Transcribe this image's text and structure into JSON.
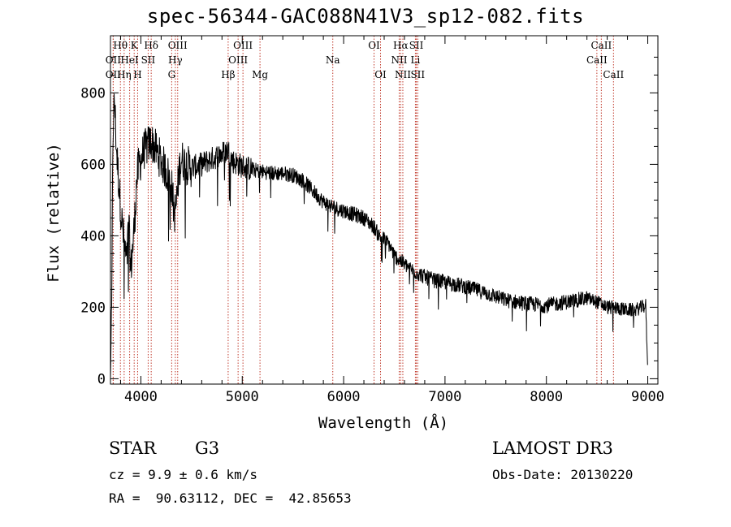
{
  "chart_data": {
    "type": "line",
    "title": "spec-56344-GAC088N41V3_sp12-082.fits",
    "xlabel": "Wavelength (Å)",
    "ylabel": "Flux (relative)",
    "xlim": [
      3700,
      9100
    ],
    "ylim": [
      -15,
      960
    ],
    "x_ticks": [
      4000,
      5000,
      6000,
      7000,
      8000,
      9000
    ],
    "x_tick_labels": [
      "4000",
      "5000",
      "6000",
      "7000",
      "8000",
      "9000"
    ],
    "y_ticks": [
      0,
      200,
      400,
      600,
      800
    ],
    "y_tick_labels": [
      "0",
      "200",
      "400",
      "600",
      "800"
    ],
    "spectrum_anchors": {
      "x": [
        3700,
        3712,
        3725,
        3740,
        3760,
        3780,
        3800,
        3820,
        3840,
        3860,
        3880,
        3900,
        3920,
        3940,
        3960,
        3980,
        4000,
        4030,
        4060,
        4100,
        4150,
        4200,
        4250,
        4300,
        4330,
        4350,
        4380,
        4400,
        4450,
        4500,
        4600,
        4700,
        4800,
        4860,
        4900,
        5000,
        5100,
        5200,
        5300,
        5400,
        5500,
        5600,
        5700,
        5800,
        5900,
        6000,
        6100,
        6200,
        6300,
        6350,
        6400,
        6450,
        6500,
        6563,
        6600,
        6700,
        6800,
        6900,
        7000,
        7200,
        7400,
        7600,
        7800,
        8000,
        8200,
        8400,
        8500,
        8600,
        8700,
        8800,
        8880,
        8980,
        9000
      ],
      "y": [
        0,
        180,
        700,
        780,
        640,
        560,
        480,
        420,
        370,
        320,
        440,
        300,
        370,
        450,
        560,
        600,
        610,
        640,
        650,
        665,
        640,
        610,
        580,
        550,
        460,
        490,
        590,
        615,
        600,
        590,
        600,
        615,
        630,
        640,
        610,
        595,
        585,
        580,
        575,
        575,
        570,
        555,
        525,
        495,
        480,
        470,
        460,
        450,
        425,
        400,
        390,
        375,
        345,
        330,
        320,
        300,
        285,
        275,
        270,
        258,
        240,
        220,
        210,
        205,
        215,
        225,
        215,
        200,
        198,
        192,
        193,
        205,
        20
      ],
      "noise_amplitude_approx": 22
    },
    "spectral_lines": [
      {
        "label": "OII",
        "wavelength": 3727,
        "row": 2
      },
      {
        "label": "Hθ",
        "wavelength": 3798,
        "row": 1
      },
      {
        "label": "OII",
        "wavelength": 3727,
        "row": 3
      },
      {
        "label": "Hη",
        "wavelength": 3835,
        "row": 3
      },
      {
        "label": "HeI",
        "wavelength": 3889,
        "row": 2
      },
      {
        "label": "K",
        "wavelength": 3934,
        "row": 1
      },
      {
        "label": "H",
        "wavelength": 3968,
        "row": 3
      },
      {
        "label": "SII",
        "wavelength": 4072,
        "row": 2
      },
      {
        "label": "Hδ",
        "wavelength": 4102,
        "row": 1
      },
      {
        "label": "OIII",
        "wavelength": 4363,
        "row": 1
      },
      {
        "label": "Hγ",
        "wavelength": 4340,
        "row": 2
      },
      {
        "label": "G",
        "wavelength": 4304,
        "row": 3
      },
      {
        "label": "OIII",
        "wavelength": 5007,
        "row": 1
      },
      {
        "label": "OIII",
        "wavelength": 4959,
        "row": 2
      },
      {
        "label": "Hβ",
        "wavelength": 4861,
        "row": 3
      },
      {
        "label": "Mg",
        "wavelength": 5175,
        "row": 3
      },
      {
        "label": "Na",
        "wavelength": 5893,
        "row": 2
      },
      {
        "label": "OI",
        "wavelength": 6300,
        "row": 1
      },
      {
        "label": "OI",
        "wavelength": 6364,
        "row": 3
      },
      {
        "label": "Hα",
        "wavelength": 6563,
        "row": 1
      },
      {
        "label": "NII",
        "wavelength": 6548,
        "row": 2
      },
      {
        "label": "NII",
        "wavelength": 6584,
        "row": 3
      },
      {
        "label": "SII",
        "wavelength": 6717,
        "row": 1
      },
      {
        "label": "Li",
        "wavelength": 6708,
        "row": 2
      },
      {
        "label": "SII",
        "wavelength": 6731,
        "row": 3
      },
      {
        "label": "CaII",
        "wavelength": 8542,
        "row": 1
      },
      {
        "label": "CaII",
        "wavelength": 8498,
        "row": 2
      },
      {
        "label": "CaII",
        "wavelength": 8662,
        "row": 3
      }
    ],
    "grid": false,
    "legend": "none"
  },
  "footer": {
    "object_class": "STAR",
    "subclass": "G3",
    "redshift": "cz = 9.9 ± 0.6 km/s",
    "coords": "RA =  90.63112, DEC =  42.85653",
    "survey": "LAMOST DR3",
    "obs_date": "Obs-Date: 20130220"
  },
  "colors": {
    "spectrum": "#000000",
    "line_markers": "#c0392b",
    "axes": "#000000"
  }
}
